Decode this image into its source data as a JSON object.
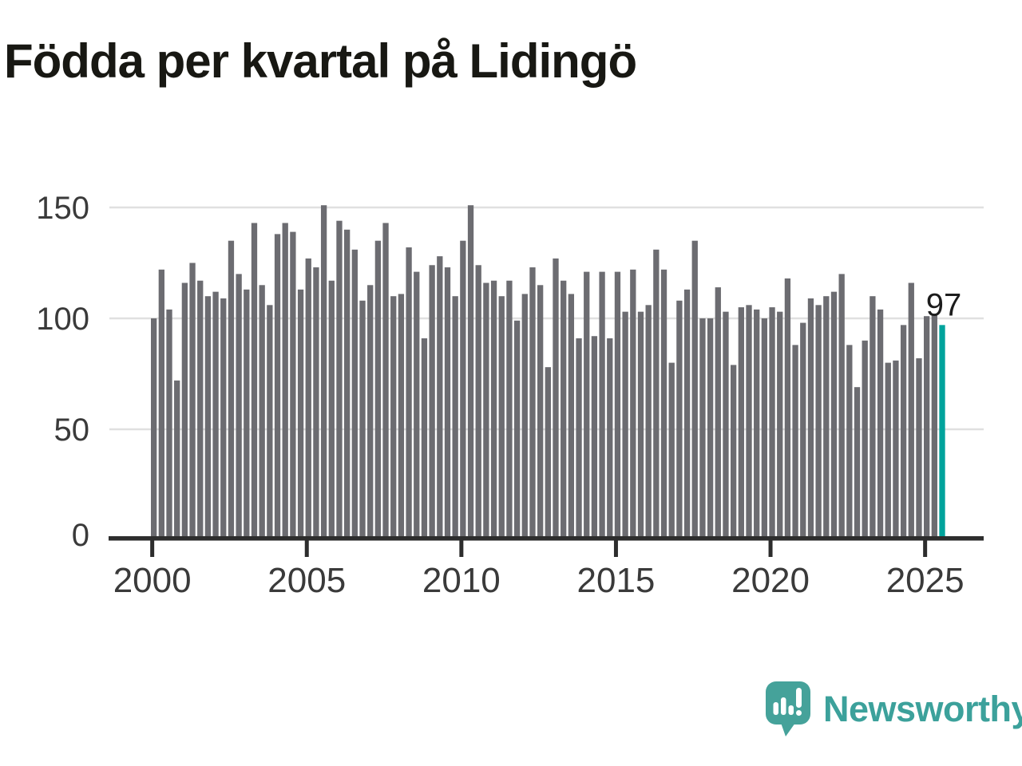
{
  "title": "Födda per kvartal på Lidingö",
  "chart_data": {
    "type": "bar",
    "title": "Födda per kvartal på Lidingö",
    "ylabel": "",
    "xlabel": "",
    "grid": "horizontal",
    "legend": "none",
    "ylim": [
      0,
      160
    ],
    "y_ticks": [
      0,
      50,
      100,
      150
    ],
    "x_ticks": [
      {
        "year": 2000,
        "label": "2000"
      },
      {
        "year": 2005,
        "label": "2005"
      },
      {
        "year": 2010,
        "label": "2010"
      },
      {
        "year": 2015,
        "label": "2015"
      },
      {
        "year": 2020,
        "label": "2020"
      },
      {
        "year": 2025,
        "label": "2025"
      }
    ],
    "quarters": [
      "2000Q1",
      "2000Q2",
      "2000Q3",
      "2000Q4",
      "2001Q1",
      "2001Q2",
      "2001Q3",
      "2001Q4",
      "2002Q1",
      "2002Q2",
      "2002Q3",
      "2002Q4",
      "2003Q1",
      "2003Q2",
      "2003Q3",
      "2003Q4",
      "2004Q1",
      "2004Q2",
      "2004Q3",
      "2004Q4",
      "2005Q1",
      "2005Q2",
      "2005Q3",
      "2005Q4",
      "2006Q1",
      "2006Q2",
      "2006Q3",
      "2006Q4",
      "2007Q1",
      "2007Q2",
      "2007Q3",
      "2007Q4",
      "2008Q1",
      "2008Q2",
      "2008Q3",
      "2008Q4",
      "2009Q1",
      "2009Q2",
      "2009Q3",
      "2009Q4",
      "2010Q1",
      "2010Q2",
      "2010Q3",
      "2010Q4",
      "2011Q1",
      "2011Q2",
      "2011Q3",
      "2011Q4",
      "2012Q1",
      "2012Q2",
      "2012Q3",
      "2012Q4",
      "2013Q1",
      "2013Q2",
      "2013Q3",
      "2013Q4",
      "2014Q1",
      "2014Q2",
      "2014Q3",
      "2014Q4",
      "2015Q1",
      "2015Q2",
      "2015Q3",
      "2015Q4",
      "2016Q1",
      "2016Q2",
      "2016Q3",
      "2016Q4",
      "2017Q1",
      "2017Q2",
      "2017Q3",
      "2017Q4",
      "2018Q1",
      "2018Q2",
      "2018Q3",
      "2018Q4",
      "2019Q1",
      "2019Q2",
      "2019Q3",
      "2019Q4",
      "2020Q1",
      "2020Q2",
      "2020Q3",
      "2020Q4",
      "2021Q1",
      "2021Q2",
      "2021Q3",
      "2021Q4",
      "2022Q1",
      "2022Q2",
      "2022Q3",
      "2022Q4",
      "2023Q1",
      "2023Q2",
      "2023Q3",
      "2023Q4",
      "2024Q1",
      "2024Q2",
      "2024Q3",
      "2024Q4",
      "2025Q1",
      "2025Q2",
      "2025Q3"
    ],
    "values": [
      100,
      122,
      104,
      72,
      116,
      125,
      117,
      110,
      112,
      109,
      135,
      120,
      113,
      143,
      115,
      106,
      138,
      143,
      139,
      113,
      127,
      123,
      151,
      117,
      144,
      140,
      131,
      108,
      115,
      135,
      143,
      110,
      111,
      132,
      121,
      91,
      124,
      128,
      123,
      110,
      135,
      151,
      124,
      116,
      117,
      110,
      117,
      99,
      111,
      123,
      115,
      78,
      127,
      117,
      111,
      91,
      121,
      92,
      121,
      91,
      121,
      103,
      122,
      103,
      106,
      131,
      122,
      80,
      108,
      113,
      135,
      100,
      100,
      114,
      103,
      79,
      105,
      106,
      104,
      100,
      105,
      103,
      118,
      88,
      98,
      109,
      106,
      110,
      112,
      120,
      88,
      69,
      90,
      110,
      104,
      80,
      81,
      97,
      116,
      82,
      101,
      102,
      97
    ],
    "highlight_index": 102,
    "annotation": "97",
    "colors": {
      "bar": "#6c6c71",
      "highlight": "#00a39c",
      "grid": "#e0e0e0",
      "axis": "#2d2d2d",
      "tick_text": "#3a3a3a",
      "title_text": "#181813"
    }
  },
  "footer": {
    "brand": "Newsworthy",
    "brand_color": "#3ca19b",
    "icon_color": "#45a29a"
  }
}
